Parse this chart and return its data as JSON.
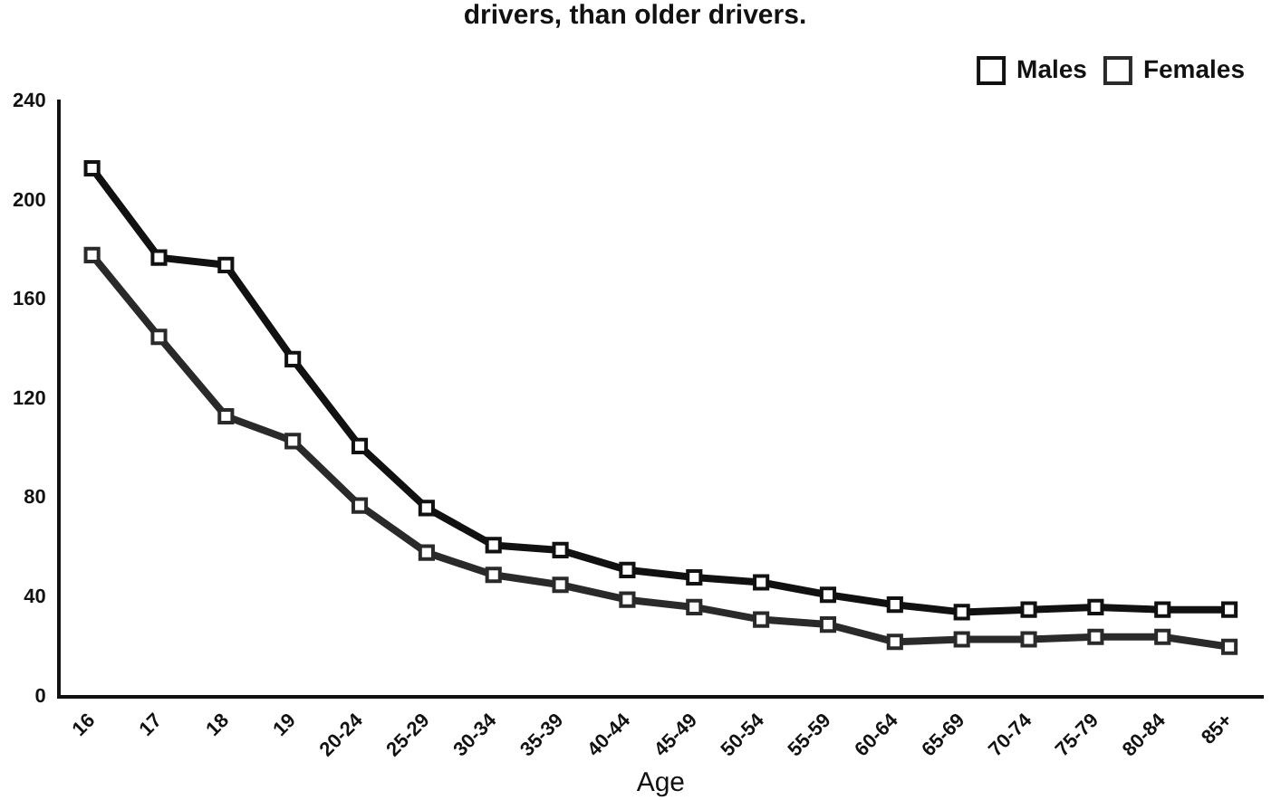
{
  "chart_data": {
    "type": "line",
    "title": "drivers, than older drivers.",
    "xlabel": "Age",
    "categories": [
      "16",
      "17",
      "18",
      "19",
      "20-24",
      "25-29",
      "30-34",
      "35-39",
      "40-44",
      "45-49",
      "50-54",
      "55-59",
      "60-64",
      "65-69",
      "70-74",
      "75-79",
      "80-84",
      "85+"
    ],
    "series": [
      {
        "name": "Males",
        "color": "#111111",
        "values": [
          213,
          177,
          174,
          136,
          101,
          76,
          61,
          59,
          51,
          48,
          46,
          41,
          37,
          34,
          35,
          36,
          35,
          35
        ]
      },
      {
        "name": "Females",
        "color": "#2a2a2a",
        "values": [
          178,
          145,
          113,
          103,
          77,
          58,
          49,
          45,
          39,
          36,
          31,
          29,
          22,
          23,
          23,
          24,
          24,
          20
        ]
      }
    ],
    "ylim": [
      0,
      240
    ],
    "yticks": [
      0,
      40,
      80,
      120,
      160,
      200,
      240
    ],
    "grid": false,
    "legend": "top right",
    "marker": "square",
    "line_style": "solid"
  }
}
